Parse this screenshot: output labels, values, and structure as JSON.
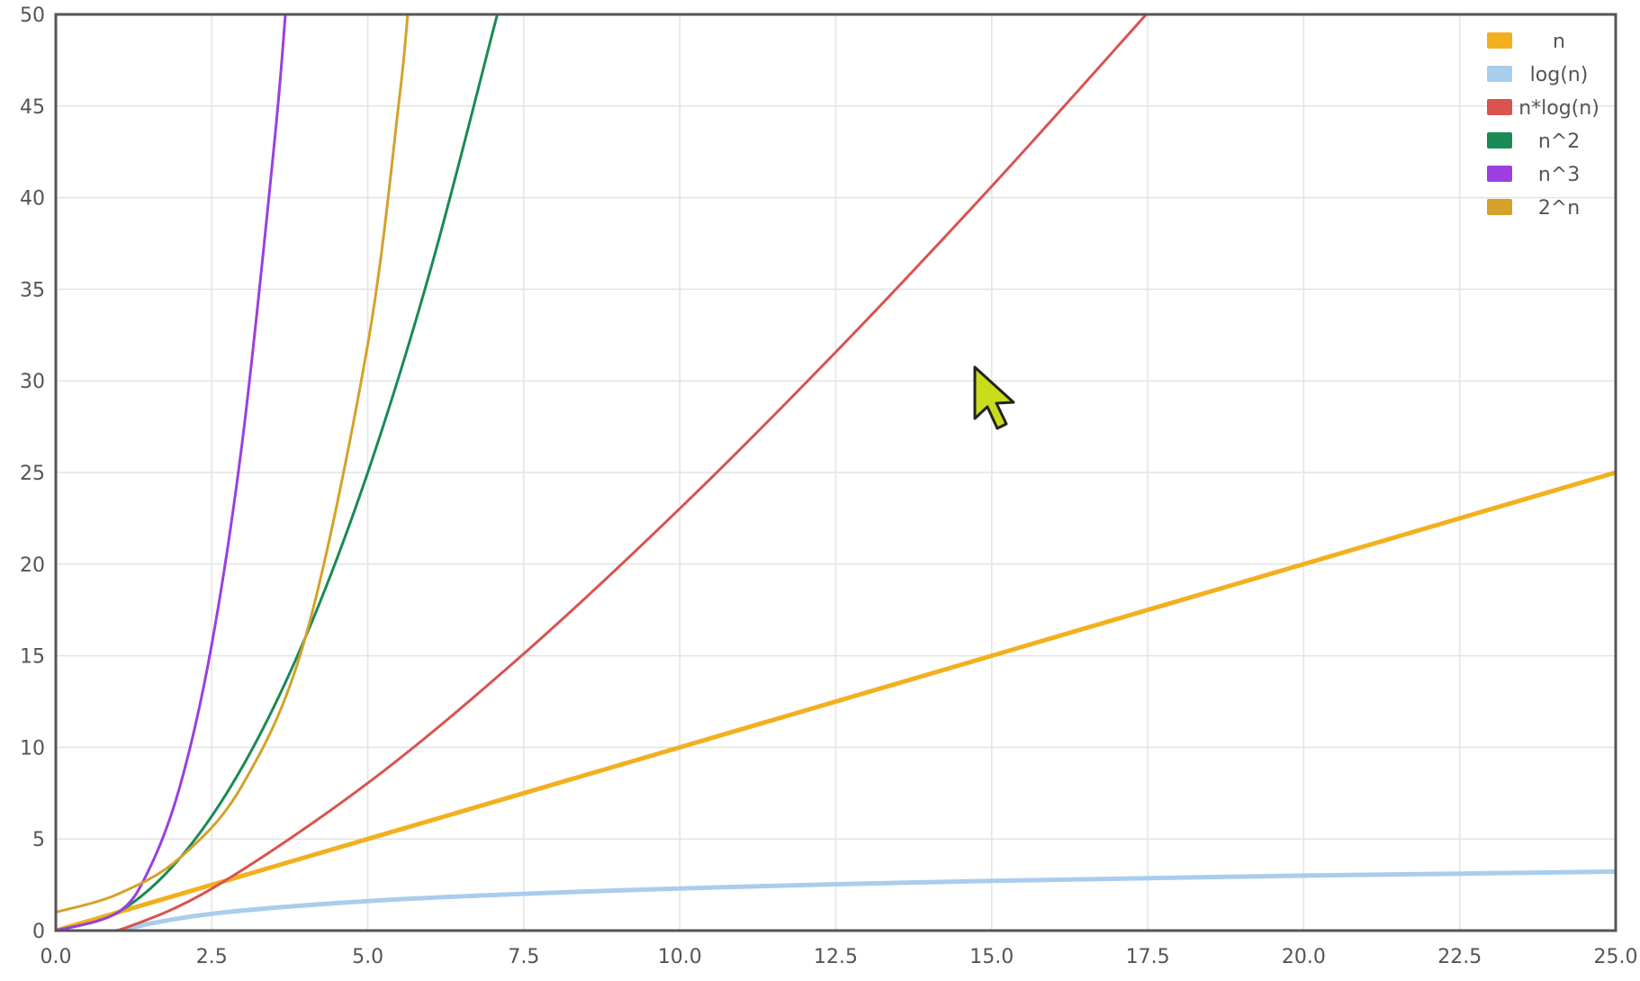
{
  "chart_data": {
    "type": "line",
    "title": "",
    "xlabel": "",
    "ylabel": "",
    "xlim": [
      0,
      25
    ],
    "ylim": [
      0,
      50
    ],
    "grid": true,
    "legend_position": "top-right",
    "x_ticks": [
      "0.0",
      "2.5",
      "5.0",
      "7.5",
      "10.0",
      "12.5",
      "15.0",
      "17.5",
      "20.0",
      "22.5",
      "25.0"
    ],
    "y_ticks": [
      "0",
      "5",
      "10",
      "15",
      "20",
      "25",
      "30",
      "35",
      "40",
      "45",
      "50"
    ],
    "series": [
      {
        "name": "n",
        "color": "#f2b01e",
        "x": [
          0,
          2.5,
          5,
          7.5,
          10,
          12.5,
          15,
          17.5,
          20,
          22.5,
          25
        ],
        "y": [
          0,
          2.5,
          5,
          7.5,
          10,
          12.5,
          15,
          17.5,
          20,
          22.5,
          25
        ]
      },
      {
        "name": "log(n)",
        "color": "#a9cdec",
        "x": [
          0.1,
          0.5,
          1,
          2.5,
          5,
          7.5,
          10,
          12.5,
          15,
          17.5,
          20,
          22.5,
          25
        ],
        "y": [
          -2.3,
          -0.69,
          0,
          0.92,
          1.61,
          2.01,
          2.3,
          2.53,
          2.71,
          2.86,
          3.0,
          3.11,
          3.22
        ]
      },
      {
        "name": "n*log(n)",
        "color": "#d9534f",
        "x": [
          0.5,
          1,
          2.5,
          5,
          7.5,
          10,
          12.5,
          15,
          17.5
        ],
        "y": [
          -0.35,
          0,
          2.29,
          8.05,
          15.11,
          23.03,
          31.57,
          40.62,
          50.09
        ]
      },
      {
        "name": "n^2",
        "color": "#1a8a56",
        "x": [
          0,
          1,
          2,
          3,
          4,
          5,
          6,
          7,
          7.07
        ],
        "y": [
          0,
          1,
          4,
          9,
          16,
          25,
          36,
          49,
          50
        ]
      },
      {
        "name": "n^3",
        "color": "#9b3fe0",
        "x": [
          0,
          1,
          1.5,
          2,
          2.5,
          3,
          3.5,
          3.68
        ],
        "y": [
          0,
          1,
          3.38,
          8,
          15.63,
          27,
          42.88,
          50
        ]
      },
      {
        "name": "2^n",
        "color": "#d4a22a",
        "x": [
          0,
          1,
          2,
          3,
          4,
          5,
          5.5,
          5.64
        ],
        "y": [
          1,
          2,
          4,
          8,
          16,
          32,
          45.25,
          50
        ]
      }
    ]
  }
}
